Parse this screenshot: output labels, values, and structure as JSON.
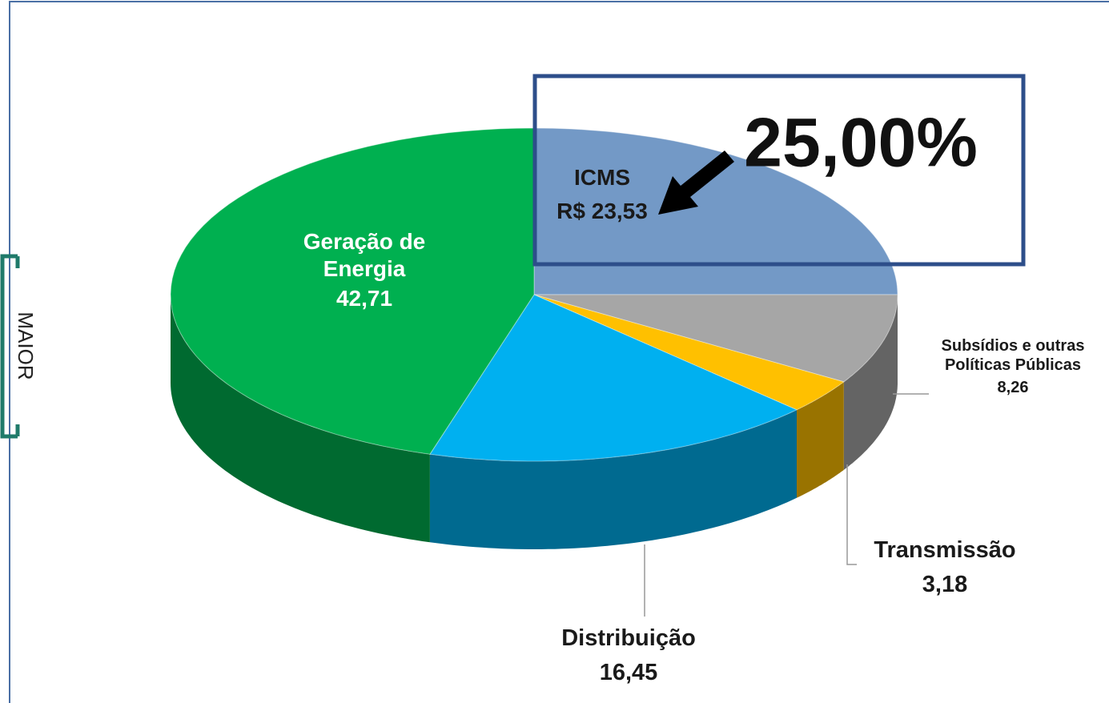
{
  "chart_data": {
    "type": "pie",
    "categories": [
      "ICMS",
      "Subsídios e outras Políticas Públicas",
      "Transmissão",
      "Distribuição",
      "Geração de Energia"
    ],
    "values": [
      23.53,
      8.26,
      3.18,
      16.45,
      42.71
    ],
    "value_labels": [
      "R$ 23,53",
      "8,26",
      "3,18",
      "16,45",
      "42,71"
    ],
    "colors": [
      "#7399c6",
      "#a6a6a6",
      "#ffc000",
      "#00b0f0",
      "#00b050"
    ],
    "annotation": "25,00%",
    "side_label": "MAIOR"
  }
}
